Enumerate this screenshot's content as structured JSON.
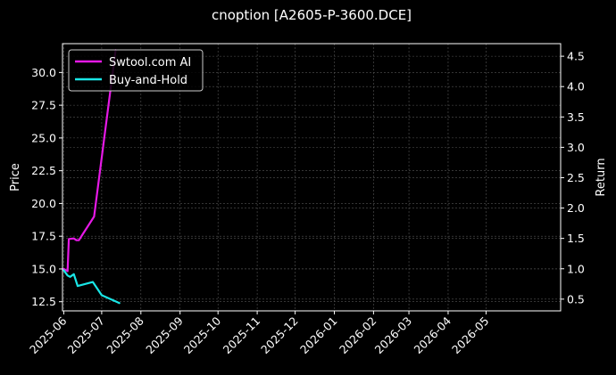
{
  "chart_data": {
    "type": "line",
    "title": "cnoption [A2605-P-3600.DCE]",
    "ylabel": "Price",
    "y2label": "Return",
    "ylim": [
      11.8,
      32.2
    ],
    "y2lim": [
      0.307,
      4.707
    ],
    "xlim": [
      "2025-05-31",
      "2026-06-29"
    ],
    "grid": true,
    "legend_position": "top-left",
    "x_ticks": [
      "2025-06-01",
      "2025-07-01",
      "2025-08-01",
      "2025-09-01",
      "2025-10-01",
      "2025-11-01",
      "2025-12-01",
      "2026-01-01",
      "2026-02-01",
      "2026-03-01",
      "2026-04-01",
      "2026-05-01"
    ],
    "x_tick_labels": [
      "2025-06",
      "2025-07",
      "2025-08",
      "2025-09",
      "2025-10",
      "2025-11",
      "2025-12",
      "2026-01",
      "2026-02",
      "2026-03",
      "2026-04",
      "2026-05"
    ],
    "y_ticks": [
      12.5,
      15.0,
      17.5,
      20.0,
      22.5,
      25.0,
      27.5,
      30.0
    ],
    "y_tick_labels": [
      "12.5",
      "15.0",
      "17.5",
      "20.0",
      "22.5",
      "25.0",
      "27.5",
      "30.0"
    ],
    "y2_ticks": [
      0.5,
      1.0,
      1.5,
      2.0,
      2.5,
      3.0,
      3.5,
      4.0,
      4.5
    ],
    "y2_tick_labels": [
      "0.5",
      "1.0",
      "1.5",
      "2.0",
      "2.5",
      "3.0",
      "3.5",
      "4.0",
      "4.5"
    ],
    "series": [
      {
        "name": "Swtool.com AI",
        "axis": "right",
        "color": "#e619e6",
        "x": [
          "2025-06-01",
          "2025-06-04",
          "2025-06-05",
          "2025-06-09",
          "2025-06-11",
          "2025-06-13",
          "2025-06-16",
          "2025-06-25",
          "2025-07-12"
        ],
        "y": [
          1.0,
          0.96,
          1.49,
          1.5,
          1.47,
          1.47,
          1.57,
          1.86,
          4.6
        ]
      },
      {
        "name": "Buy-and-Hold",
        "axis": "left",
        "color": "#19e6e6",
        "x": [
          "2025-06-01",
          "2025-06-04",
          "2025-06-06",
          "2025-06-09",
          "2025-06-12",
          "2025-06-24",
          "2025-07-01",
          "2025-07-15"
        ],
        "y": [
          14.9,
          14.5,
          14.4,
          14.6,
          13.7,
          14.0,
          13.0,
          12.4
        ]
      }
    ]
  }
}
